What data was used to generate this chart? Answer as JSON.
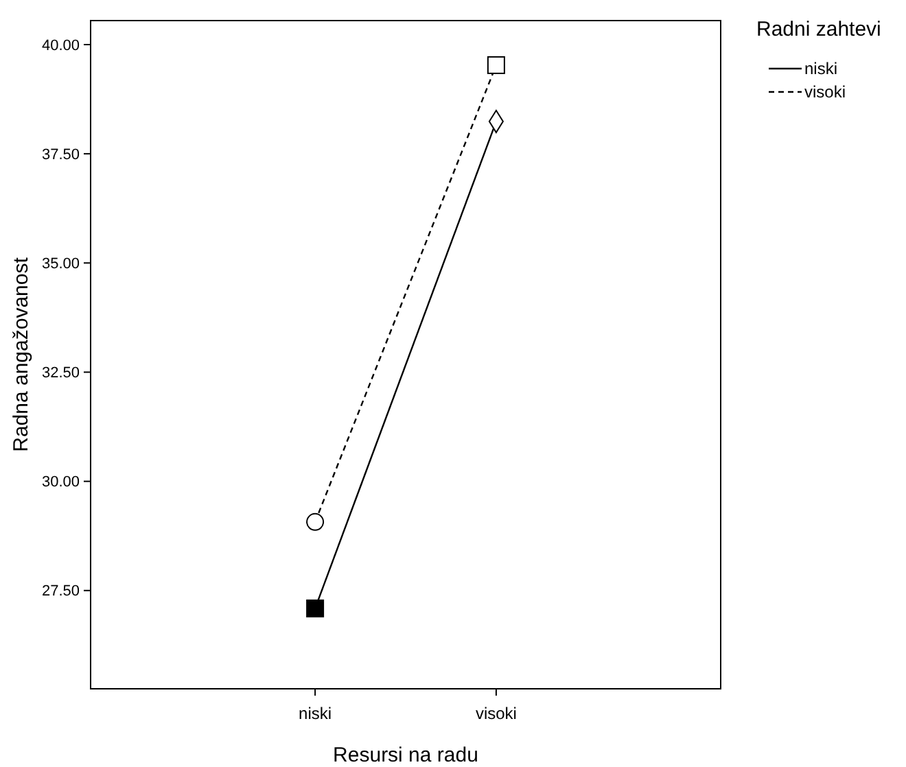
{
  "chart_data": {
    "type": "line",
    "xlabel": "Resursi na radu",
    "ylabel": "Radna angažovanost",
    "legend_title": "Radni zahtevi",
    "legend": "top right",
    "categories": [
      "niski",
      "visoki"
    ],
    "ylim": [
      25.25,
      40.55
    ],
    "yticks": [
      {
        "value": 27.5,
        "label": "27.50"
      },
      {
        "value": 30,
        "label": "30.00"
      },
      {
        "value": 32.5,
        "label": "32.50"
      },
      {
        "value": 35,
        "label": "35.00"
      },
      {
        "value": 37.5,
        "label": "37.50"
      },
      {
        "value": 40,
        "label": "40.00"
      }
    ],
    "grid": false,
    "series": [
      {
        "name": "niski",
        "color": "#000000",
        "line_style": "solid",
        "marker": [
          "square",
          "diamond"
        ],
        "values": [
          27.09,
          38.24
        ]
      },
      {
        "name": "visoki",
        "color": "#000000",
        "line_style": "dashed",
        "marker": [
          "circle",
          "square"
        ],
        "values": [
          29.07,
          39.53
        ]
      }
    ]
  }
}
